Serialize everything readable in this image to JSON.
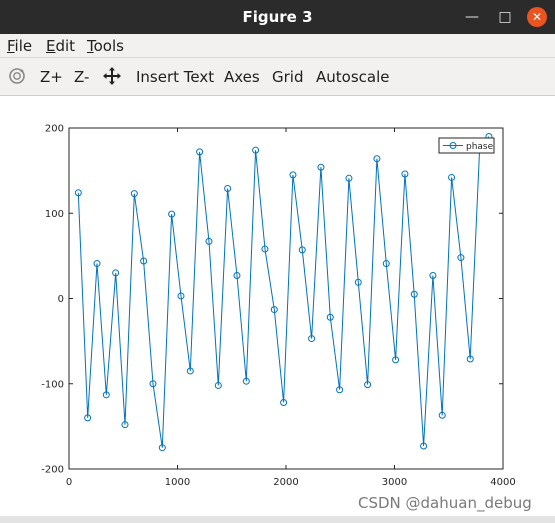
{
  "window": {
    "title": "Figure 3"
  },
  "menu": [
    {
      "mnemonic": "F",
      "rest": "ile"
    },
    {
      "mnemonic": "E",
      "rest": "dit"
    },
    {
      "mnemonic": "T",
      "rest": "ools"
    }
  ],
  "toolbar": {
    "zoom_in": "Z+",
    "zoom_out": "Z-",
    "insert_text": "Insert Text",
    "axes": "Axes",
    "grid": "Grid",
    "autoscale": "Autoscale"
  },
  "watermark": "CSDN @dahuan_debug",
  "colors": {
    "series": "#0072bd",
    "titlebar": "#2b2b2b",
    "close": "#e95420"
  },
  "chart_data": {
    "type": "line",
    "title": "",
    "xlabel": "",
    "ylabel": "",
    "xlim": [
      0,
      4000
    ],
    "ylim": [
      -200,
      200
    ],
    "xticks": [
      0,
      1000,
      2000,
      3000,
      4000
    ],
    "yticks": [
      -200,
      -100,
      0,
      100,
      200
    ],
    "legend_position": "top-right",
    "marker": "circle",
    "grid": false,
    "series": [
      {
        "name": "phase",
        "x": [
          86,
          172,
          258,
          344,
          430,
          516,
          602,
          688,
          774,
          860,
          946,
          1032,
          1118,
          1204,
          1290,
          1376,
          1462,
          1548,
          1634,
          1720,
          1806,
          1892,
          1978,
          2064,
          2150,
          2236,
          2322,
          2408,
          2494,
          2580,
          2666,
          2752,
          2838,
          2924,
          3010,
          3096,
          3182,
          3268,
          3354,
          3440,
          3526,
          3612,
          3698,
          3784,
          3870
        ],
        "y": [
          124,
          -140,
          41,
          -113,
          30,
          -148,
          123,
          44,
          -100,
          -175,
          99,
          3,
          -85,
          172,
          67,
          -102,
          129,
          27,
          -97,
          174,
          58,
          -13,
          -122,
          145,
          57,
          -47,
          154,
          -22,
          -107,
          141,
          19,
          -101,
          164,
          41,
          -72,
          146,
          5,
          -173,
          27,
          -137,
          142,
          48,
          -71,
          175,
          190
        ]
      }
    ]
  }
}
